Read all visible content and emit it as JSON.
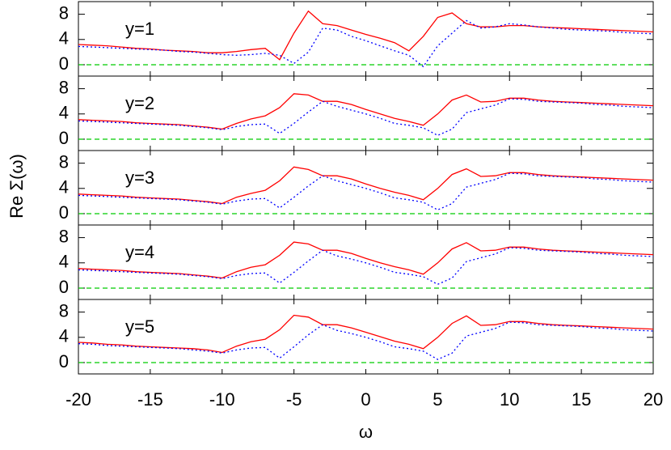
{
  "chart_data": [
    {
      "type": "line",
      "annotation": "y=1",
      "xlim": [
        -20,
        20
      ],
      "ylim": [
        -1.8,
        10
      ],
      "yticks": [
        0,
        4,
        8
      ],
      "xticks": [
        -20,
        -15,
        -10,
        -5,
        0,
        5,
        10,
        15,
        20
      ],
      "x": [
        -20,
        -19,
        -18,
        -17,
        -16,
        -15,
        -14,
        -13,
        -12,
        -11,
        -10,
        -9,
        -8,
        -7,
        -6,
        -5,
        -4,
        -3,
        -2,
        -1,
        0,
        1,
        2,
        3,
        4,
        5,
        6,
        7,
        8,
        9,
        10,
        11,
        12,
        13,
        14,
        15,
        16,
        17,
        18,
        19,
        20
      ],
      "series": [
        {
          "color": "#ff0000",
          "dash": "solid",
          "values": [
            3.2,
            3.1,
            3.0,
            2.8,
            2.6,
            2.5,
            2.3,
            2.2,
            2.1,
            1.9,
            1.9,
            2.1,
            2.4,
            2.6,
            0.8,
            5.0,
            8.5,
            6.5,
            6.2,
            5.5,
            4.8,
            4.2,
            3.5,
            2.2,
            4.5,
            7.5,
            8.2,
            6.5,
            6.0,
            6.0,
            6.2,
            6.2,
            6.0,
            5.9,
            5.8,
            5.7,
            5.6,
            5.5,
            5.4,
            5.3,
            5.2
          ]
        },
        {
          "color": "#0000ff",
          "dash": "dotted",
          "values": [
            2.9,
            2.8,
            2.7,
            2.6,
            2.5,
            2.4,
            2.3,
            2.1,
            2.0,
            1.8,
            1.6,
            1.5,
            1.6,
            1.8,
            1.5,
            0.2,
            2.0,
            5.8,
            5.5,
            4.5,
            3.8,
            3.0,
            2.2,
            1.5,
            -0.3,
            3.0,
            5.0,
            7.0,
            5.8,
            6.0,
            6.5,
            6.3,
            6.0,
            5.8,
            5.6,
            5.5,
            5.4,
            5.3,
            5.1,
            5.0,
            4.9
          ]
        },
        {
          "color": "#00cc00",
          "dash": "dashed",
          "values": [
            0,
            0,
            0,
            0,
            0,
            0,
            0,
            0,
            0,
            0,
            0,
            0,
            0,
            0,
            0,
            0,
            0,
            0,
            0,
            0,
            0,
            0,
            0,
            0,
            0,
            0,
            0,
            0,
            0,
            0,
            0,
            0,
            0,
            0,
            0,
            0,
            0,
            0,
            0,
            0,
            0
          ]
        }
      ]
    },
    {
      "type": "line",
      "annotation": "y=2",
      "xlim": [
        -20,
        20
      ],
      "ylim": [
        -1.8,
        10
      ],
      "yticks": [
        0,
        4,
        8
      ],
      "xticks": [
        -20,
        -15,
        -10,
        -5,
        0,
        5,
        10,
        15,
        20
      ],
      "x": [
        -20,
        -19,
        -18,
        -17,
        -16,
        -15,
        -14,
        -13,
        -12,
        -11,
        -10,
        -9,
        -8,
        -7,
        -6,
        -5,
        -4,
        -3,
        -2,
        -1,
        0,
        1,
        2,
        3,
        4,
        5,
        6,
        7,
        8,
        9,
        10,
        11,
        12,
        13,
        14,
        15,
        16,
        17,
        18,
        19,
        20
      ],
      "series": [
        {
          "color": "#ff0000",
          "dash": "solid",
          "values": [
            3.1,
            3.0,
            2.9,
            2.8,
            2.6,
            2.5,
            2.4,
            2.3,
            2.1,
            1.9,
            1.6,
            2.5,
            3.2,
            3.7,
            5.0,
            7.2,
            7.0,
            6.0,
            6.0,
            5.5,
            4.7,
            4.0,
            3.3,
            2.8,
            2.2,
            4.0,
            6.2,
            7.0,
            5.9,
            6.0,
            6.5,
            6.5,
            6.2,
            6.0,
            5.9,
            5.8,
            5.7,
            5.6,
            5.5,
            5.4,
            5.3
          ]
        },
        {
          "color": "#0000ff",
          "dash": "dotted",
          "values": [
            2.9,
            2.8,
            2.7,
            2.6,
            2.5,
            2.4,
            2.3,
            2.2,
            2.0,
            1.8,
            1.5,
            2.0,
            2.3,
            2.4,
            0.9,
            2.5,
            4.3,
            6.0,
            5.2,
            4.6,
            4.0,
            3.3,
            2.5,
            2.2,
            1.8,
            0.6,
            1.6,
            4.2,
            4.8,
            5.4,
            6.4,
            6.3,
            6.0,
            5.9,
            5.8,
            5.7,
            5.5,
            5.4,
            5.2,
            5.1,
            5.0
          ]
        },
        {
          "color": "#00cc00",
          "dash": "dashed",
          "values": [
            0,
            0,
            0,
            0,
            0,
            0,
            0,
            0,
            0,
            0,
            0,
            0,
            0,
            0,
            0,
            0,
            0,
            0,
            0,
            0,
            0,
            0,
            0,
            0,
            0,
            0,
            0,
            0,
            0,
            0,
            0,
            0,
            0,
            0,
            0,
            0,
            0,
            0,
            0,
            0,
            0
          ]
        }
      ]
    },
    {
      "type": "line",
      "annotation": "y=3",
      "y_label": "Re Σ(ω)",
      "xlim": [
        -20,
        20
      ],
      "ylim": [
        -1.8,
        10
      ],
      "yticks": [
        0,
        4,
        8
      ],
      "xticks": [
        -20,
        -15,
        -10,
        -5,
        0,
        5,
        10,
        15,
        20
      ],
      "x": [
        -20,
        -19,
        -18,
        -17,
        -16,
        -15,
        -14,
        -13,
        -12,
        -11,
        -10,
        -9,
        -8,
        -7,
        -6,
        -5,
        -4,
        -3,
        -2,
        -1,
        0,
        1,
        2,
        3,
        4,
        5,
        6,
        7,
        8,
        9,
        10,
        11,
        12,
        13,
        14,
        15,
        16,
        17,
        18,
        19,
        20
      ],
      "series": [
        {
          "color": "#ff0000",
          "dash": "solid",
          "values": [
            3.1,
            3.0,
            2.9,
            2.8,
            2.6,
            2.5,
            2.4,
            2.3,
            2.1,
            1.9,
            1.6,
            2.6,
            3.2,
            3.7,
            5.2,
            7.4,
            7.0,
            6.0,
            6.0,
            5.5,
            4.7,
            4.0,
            3.4,
            2.9,
            2.2,
            4.0,
            6.2,
            7.1,
            5.9,
            6.0,
            6.5,
            6.5,
            6.2,
            6.0,
            5.9,
            5.8,
            5.7,
            5.6,
            5.5,
            5.4,
            5.3
          ]
        },
        {
          "color": "#0000ff",
          "dash": "dotted",
          "values": [
            2.9,
            2.8,
            2.7,
            2.6,
            2.5,
            2.4,
            2.3,
            2.2,
            2.0,
            1.8,
            1.5,
            2.0,
            2.3,
            2.4,
            0.9,
            2.6,
            4.4,
            6.0,
            5.2,
            4.6,
            4.0,
            3.3,
            2.5,
            2.2,
            1.8,
            0.6,
            1.6,
            4.2,
            4.8,
            5.4,
            6.4,
            6.3,
            6.0,
            5.9,
            5.8,
            5.7,
            5.5,
            5.4,
            5.2,
            5.1,
            5.0
          ]
        },
        {
          "color": "#00cc00",
          "dash": "dashed",
          "values": [
            0,
            0,
            0,
            0,
            0,
            0,
            0,
            0,
            0,
            0,
            0,
            0,
            0,
            0,
            0,
            0,
            0,
            0,
            0,
            0,
            0,
            0,
            0,
            0,
            0,
            0,
            0,
            0,
            0,
            0,
            0,
            0,
            0,
            0,
            0,
            0,
            0,
            0,
            0,
            0,
            0
          ]
        }
      ]
    },
    {
      "type": "line",
      "annotation": "y=4",
      "xlim": [
        -20,
        20
      ],
      "ylim": [
        -1.8,
        10
      ],
      "yticks": [
        0,
        4,
        8
      ],
      "xticks": [
        -20,
        -15,
        -10,
        -5,
        0,
        5,
        10,
        15,
        20
      ],
      "x": [
        -20,
        -19,
        -18,
        -17,
        -16,
        -15,
        -14,
        -13,
        -12,
        -11,
        -10,
        -9,
        -8,
        -7,
        -6,
        -5,
        -4,
        -3,
        -2,
        -1,
        0,
        1,
        2,
        3,
        4,
        5,
        6,
        7,
        8,
        9,
        10,
        11,
        12,
        13,
        14,
        15,
        16,
        17,
        18,
        19,
        20
      ],
      "series": [
        {
          "color": "#ff0000",
          "dash": "solid",
          "values": [
            3.1,
            3.0,
            2.9,
            2.8,
            2.6,
            2.5,
            2.4,
            2.3,
            2.1,
            1.9,
            1.6,
            2.6,
            3.3,
            3.7,
            5.2,
            7.3,
            7.0,
            6.0,
            6.0,
            5.5,
            4.7,
            4.0,
            3.4,
            2.9,
            2.2,
            4.0,
            6.2,
            7.2,
            5.9,
            6.0,
            6.5,
            6.5,
            6.2,
            6.0,
            5.9,
            5.8,
            5.7,
            5.6,
            5.5,
            5.4,
            5.3
          ]
        },
        {
          "color": "#0000ff",
          "dash": "dotted",
          "values": [
            2.9,
            2.8,
            2.7,
            2.6,
            2.5,
            2.4,
            2.3,
            2.2,
            2.0,
            1.8,
            1.5,
            2.0,
            2.3,
            2.4,
            0.8,
            2.5,
            4.3,
            6.0,
            5.1,
            4.6,
            4.0,
            3.3,
            2.5,
            2.2,
            1.8,
            0.6,
            1.6,
            4.2,
            4.8,
            5.4,
            6.4,
            6.3,
            6.0,
            5.9,
            5.8,
            5.7,
            5.5,
            5.4,
            5.2,
            5.1,
            5.0
          ]
        },
        {
          "color": "#00cc00",
          "dash": "dashed",
          "values": [
            0,
            0,
            0,
            0,
            0,
            0,
            0,
            0,
            0,
            0,
            0,
            0,
            0,
            0,
            0,
            0,
            0,
            0,
            0,
            0,
            0,
            0,
            0,
            0,
            0,
            0,
            0,
            0,
            0,
            0,
            0,
            0,
            0,
            0,
            0,
            0,
            0,
            0,
            0,
            0,
            0
          ]
        }
      ]
    },
    {
      "type": "line",
      "annotation": "y=5",
      "x_label": "ω",
      "xlim": [
        -20,
        20
      ],
      "ylim": [
        -1.8,
        10
      ],
      "yticks": [
        0,
        4,
        8
      ],
      "xticks": [
        -20,
        -15,
        -10,
        -5,
        0,
        5,
        10,
        15,
        20
      ],
      "x": [
        -20,
        -19,
        -18,
        -17,
        -16,
        -15,
        -14,
        -13,
        -12,
        -11,
        -10,
        -9,
        -8,
        -7,
        -6,
        -5,
        -4,
        -3,
        -2,
        -1,
        0,
        1,
        2,
        3,
        4,
        5,
        6,
        7,
        8,
        9,
        10,
        11,
        12,
        13,
        14,
        15,
        16,
        17,
        18,
        19,
        20
      ],
      "series": [
        {
          "color": "#ff0000",
          "dash": "solid",
          "values": [
            3.2,
            3.1,
            2.9,
            2.8,
            2.6,
            2.5,
            2.4,
            2.3,
            2.2,
            2.0,
            1.6,
            2.6,
            3.3,
            3.7,
            5.2,
            7.5,
            7.2,
            6.0,
            6.0,
            5.5,
            4.8,
            4.1,
            3.4,
            2.9,
            2.2,
            4.0,
            6.2,
            7.4,
            5.9,
            6.0,
            6.5,
            6.5,
            6.2,
            6.0,
            5.9,
            5.8,
            5.7,
            5.6,
            5.5,
            5.4,
            5.3
          ]
        },
        {
          "color": "#0000ff",
          "dash": "dotted",
          "values": [
            3.0,
            2.9,
            2.7,
            2.6,
            2.5,
            2.4,
            2.3,
            2.2,
            2.0,
            1.8,
            1.5,
            2.0,
            2.3,
            2.4,
            0.7,
            2.5,
            4.4,
            6.0,
            5.1,
            4.6,
            4.0,
            3.3,
            2.5,
            2.2,
            1.8,
            0.5,
            1.5,
            4.2,
            4.8,
            5.4,
            6.4,
            6.3,
            6.0,
            5.9,
            5.8,
            5.7,
            5.5,
            5.4,
            5.2,
            5.1,
            5.0
          ]
        },
        {
          "color": "#00cc00",
          "dash": "dashed",
          "values": [
            0,
            0,
            0,
            0,
            0,
            0,
            0,
            0,
            0,
            0,
            0,
            0,
            0,
            0,
            0,
            0,
            0,
            0,
            0,
            0,
            0,
            0,
            0,
            0,
            0,
            0,
            0,
            0,
            0,
            0,
            0,
            0,
            0,
            0,
            0,
            0,
            0,
            0,
            0,
            0,
            0
          ]
        }
      ]
    }
  ]
}
